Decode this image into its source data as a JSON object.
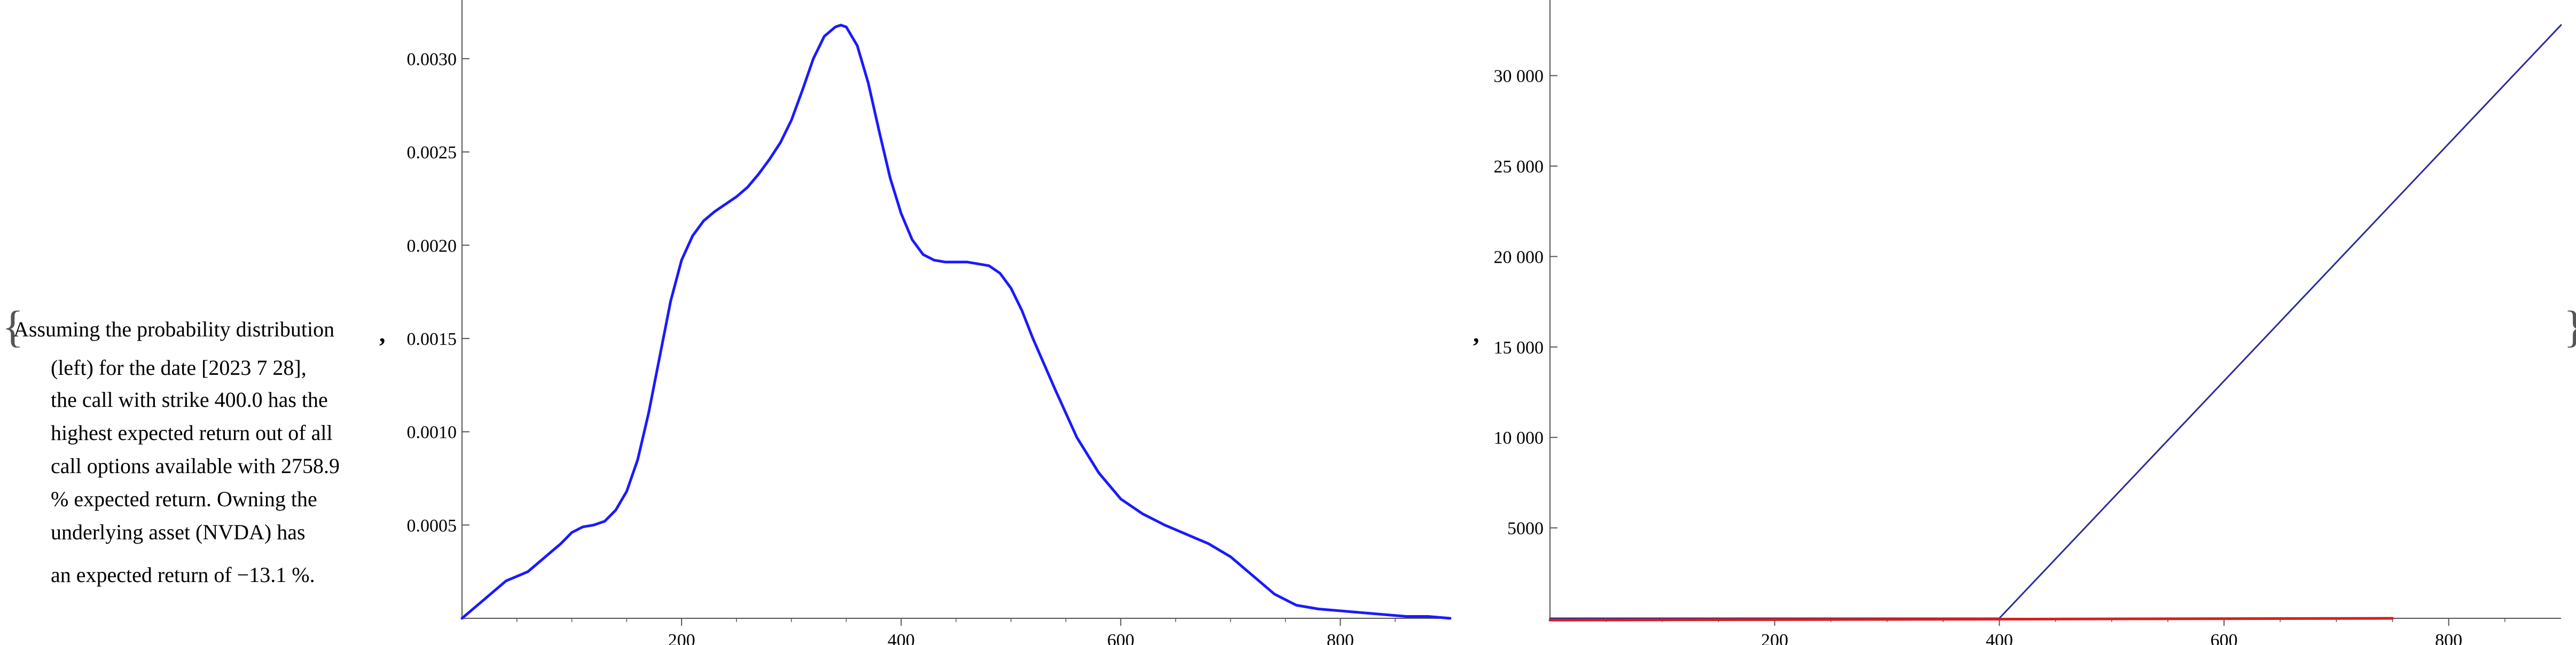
{
  "text": {
    "open_brace": "{",
    "close_brace": "}",
    "comma": ",",
    "lines": [
      "Assuming the probability distribution",
      "(left) for the date [2023 7 28],",
      "the call with strike 400.0 has the",
      "highest expected return out of all",
      "call options available with 2758.9",
      "% expected return. Owning the",
      "underlying asset (NVDA) has",
      "an expected return of −13.1 %."
    ]
  },
  "colors": {
    "blue_curve": "#1a1aff",
    "navy_line": "#2b2b9c",
    "red_line": "#d42020",
    "axis": "#555555"
  },
  "chart_data": [
    {
      "type": "line",
      "title": "",
      "xlabel": "",
      "ylabel": "",
      "xlim": [
        0,
        900
      ],
      "ylim": [
        0,
        0.0032
      ],
      "x_ticks": [
        200,
        400,
        600,
        800
      ],
      "x_tick_labels": [
        "200",
        "400",
        "600",
        "800"
      ],
      "y_ticks": [
        0.0005,
        0.001,
        0.0015,
        0.002,
        0.0025,
        0.003
      ],
      "y_tick_labels": [
        "0.0005",
        "0.0010",
        "0.0015",
        "0.0020",
        "0.0025",
        "0.0030"
      ],
      "grid": false,
      "series": [
        {
          "color": "#1a1aff",
          "x": [
            0,
            20,
            40,
            60,
            70,
            80,
            90,
            100,
            110,
            120,
            130,
            140,
            150,
            160,
            170,
            180,
            190,
            200,
            210,
            220,
            230,
            240,
            250,
            260,
            270,
            280,
            290,
            300,
            310,
            320,
            330,
            340,
            345,
            350,
            360,
            370,
            380,
            390,
            400,
            410,
            420,
            430,
            440,
            460,
            480,
            490,
            500,
            510,
            520,
            540,
            560,
            580,
            600,
            620,
            640,
            660,
            680,
            700,
            720,
            740,
            760,
            780,
            800,
            820,
            840,
            860,
            880,
            900
          ],
          "y": [
            0.0,
            0.0001,
            0.0002,
            0.00025,
            0.0003,
            0.00035,
            0.0004,
            0.00046,
            0.00049,
            0.0005,
            0.00052,
            0.00058,
            0.00068,
            0.00085,
            0.0011,
            0.0014,
            0.0017,
            0.00192,
            0.00205,
            0.00213,
            0.00218,
            0.00222,
            0.00226,
            0.00231,
            0.00238,
            0.00246,
            0.00255,
            0.00267,
            0.00283,
            0.003,
            0.00312,
            0.00317,
            0.00318,
            0.00317,
            0.00307,
            0.00287,
            0.00261,
            0.00236,
            0.00217,
            0.00203,
            0.00195,
            0.00192,
            0.00191,
            0.00191,
            0.00189,
            0.00185,
            0.00177,
            0.00165,
            0.0015,
            0.00123,
            0.00097,
            0.00078,
            0.00064,
            0.00056,
            0.0005,
            0.00045,
            0.0004,
            0.00033,
            0.00023,
            0.00013,
            7e-05,
            5e-05,
            4e-05,
            3e-05,
            2e-05,
            1e-05,
            1e-05,
            0.0
          ]
        }
      ]
    },
    {
      "type": "line",
      "title": "",
      "xlabel": "",
      "ylabel": "",
      "xlim": [
        0,
        900
      ],
      "ylim": [
        0,
        33000
      ],
      "x_ticks": [
        200,
        400,
        600,
        800
      ],
      "x_tick_labels": [
        "200",
        "400",
        "600",
        "800"
      ],
      "y_ticks": [
        5000,
        10000,
        15000,
        20000,
        25000,
        30000
      ],
      "y_tick_labels": [
        "5000",
        "10 000",
        "15 000",
        "20 000",
        "25 000",
        "30 000"
      ],
      "grid": false,
      "series": [
        {
          "color": "#2b2b9c",
          "x": [
            0,
            400,
            900
          ],
          "y": [
            0,
            0,
            32800
          ]
        },
        {
          "color": "#d42020",
          "x": [
            0,
            750
          ],
          "y": [
            -100,
            0
          ]
        }
      ]
    }
  ]
}
